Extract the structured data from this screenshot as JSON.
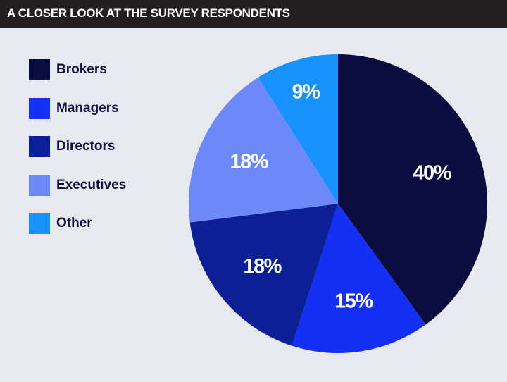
{
  "header": {
    "title": "A CLOSER LOOK AT THE SURVEY RESPONDENTS"
  },
  "colors": {
    "background": "#e8e9ee",
    "title_bar": "#231f20",
    "title_text": "#ffffff",
    "legend_text": "#0b0d3d",
    "slice_text": "#ffffff"
  },
  "chart_data": {
    "type": "pie",
    "title": "A CLOSER LOOK AT THE SURVEY RESPONDENTS",
    "legend_position": "left",
    "slices": [
      {
        "label": "Brokers",
        "value": 40,
        "value_label": "40%",
        "color": "#090c3e"
      },
      {
        "label": "Managers",
        "value": 15,
        "value_label": "15%",
        "color": "#1530f4"
      },
      {
        "label": "Directors",
        "value": 18,
        "value_label": "18%",
        "color": "#0b1f96"
      },
      {
        "label": "Executives",
        "value": 18,
        "value_label": "18%",
        "color": "#6d88fb"
      },
      {
        "label": "Other",
        "value": 9,
        "value_label": "9%",
        "color": "#1892fb"
      }
    ]
  }
}
